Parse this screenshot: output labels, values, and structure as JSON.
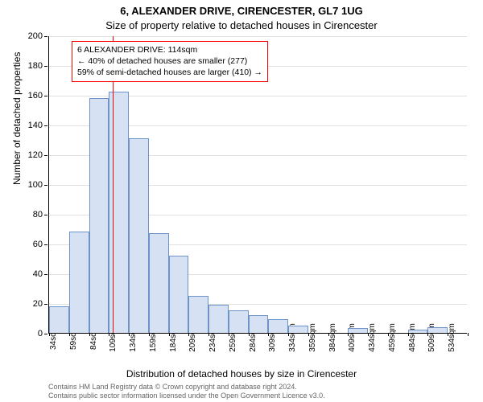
{
  "title_line1": "6, ALEXANDER DRIVE, CIRENCESTER, GL7 1UG",
  "title_line2": "Size of property relative to detached houses in Cirencester",
  "ylabel": "Number of detached properties",
  "xlabel": "Distribution of detached houses by size in Cirencester",
  "chart": {
    "type": "histogram",
    "ylim": [
      0,
      200
    ],
    "ytick_step": 20,
    "bar_fill": "#d6e2f3",
    "bar_stroke": "#6d93c9",
    "background": "#ffffff",
    "grid_color": "#e0e0e0",
    "marker_color": "#ff0000",
    "marker_x": 114,
    "x_start": 34,
    "x_step": 25,
    "x_count": 21,
    "x_unit": "sqm",
    "values": [
      18,
      68,
      158,
      162,
      131,
      67,
      52,
      25,
      19,
      15,
      12,
      9,
      5,
      0,
      0,
      3,
      0,
      0,
      2,
      4,
      0
    ]
  },
  "annotation": {
    "line1": "6 ALEXANDER DRIVE: 114sqm",
    "line2": "← 40% of detached houses are smaller (277)",
    "line3": "59% of semi-detached houses are larger (410) →",
    "border": "#ff0000"
  },
  "footer_line1": "Contains HM Land Registry data © Crown copyright and database right 2024.",
  "footer_line2": "Contains public sector information licensed under the Open Government Licence v3.0."
}
